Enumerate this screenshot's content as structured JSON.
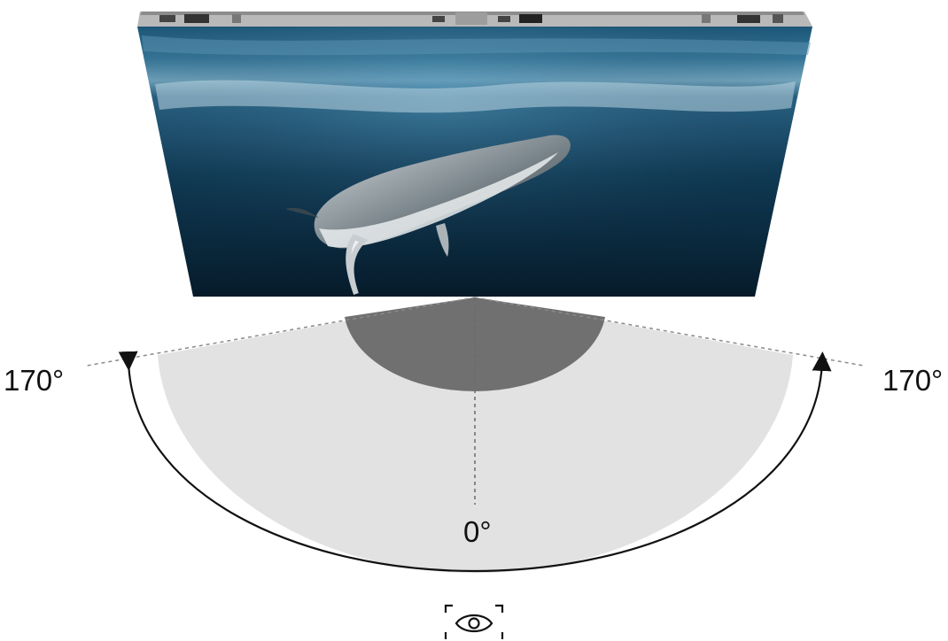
{
  "diagram": {
    "angle_left_label": "170°",
    "angle_right_label": "170°",
    "center_label": "0°",
    "viewing_angle_degrees": 170,
    "center_angle_degrees": 0
  },
  "display": {
    "panel_icon": "led-display-panel",
    "screen_content_icon": "underwater-humpback-whale-image"
  },
  "viewer": {
    "icon": "eye-icon"
  },
  "colors": {
    "wide_sector": "#e2e2e2",
    "inner_sector": "#707070",
    "arc_arrow": "#111111",
    "dashed_lines": "#8a8a8a",
    "panel_frame": "#9a9a9a",
    "ocean_dark": "#07253a",
    "ocean_light": "#2f6f94"
  }
}
